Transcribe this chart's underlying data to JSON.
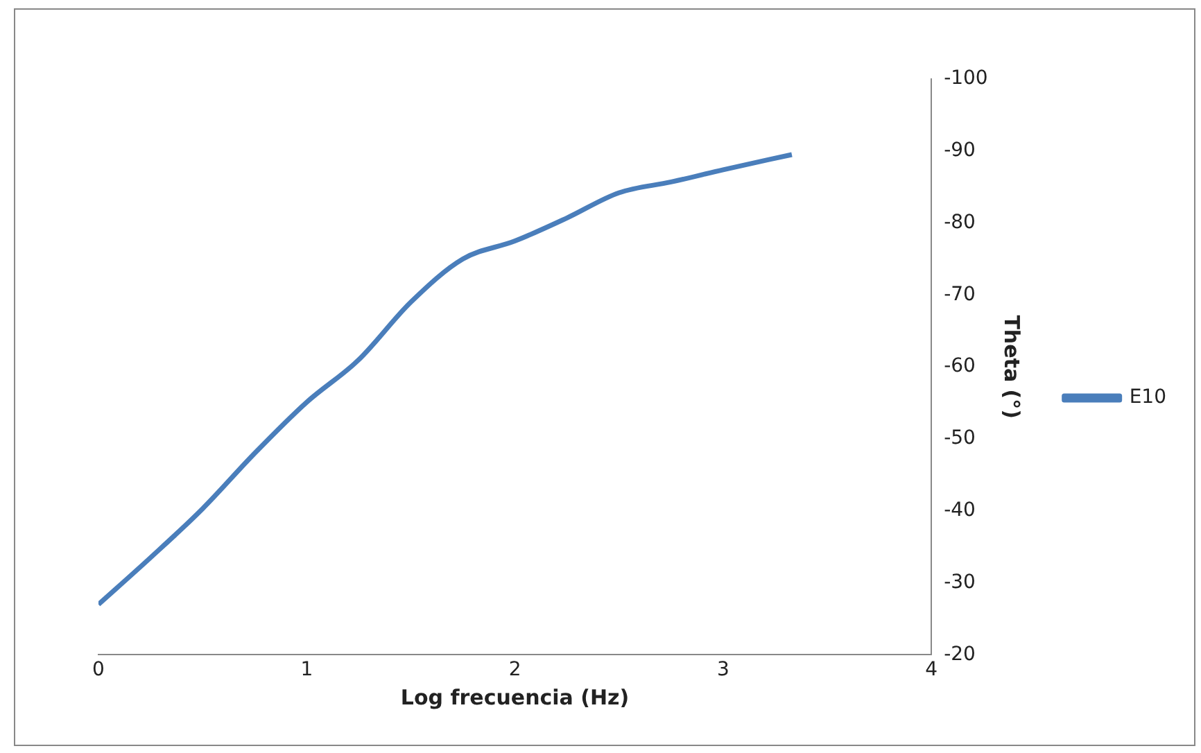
{
  "chart_data": {
    "type": "line",
    "xlabel": "Log frecuencia (Hz)",
    "ylabel": "Theta (°)",
    "x": [
      0,
      0.25,
      0.5,
      0.75,
      1,
      1.25,
      1.5,
      1.75,
      2,
      2.25,
      2.5,
      2.75,
      3,
      3.33
    ],
    "series": [
      {
        "name": "E10",
        "color": "#4a7ebb",
        "values": [
          -27,
          -33.5,
          -40.3,
          -48,
          -55.1,
          -61,
          -69,
          -75,
          -77.5,
          -80.7,
          -84.2,
          -85.7,
          -87.4,
          -89.5
        ]
      }
    ],
    "xlim": [
      0,
      4
    ],
    "xticks": [
      0,
      1,
      2,
      3,
      4
    ],
    "ylim": [
      -20,
      -100
    ],
    "yticks": [
      -20,
      -30,
      -40,
      -50,
      -60,
      -70,
      -80,
      -90,
      -100
    ],
    "grid": false,
    "legend": "right",
    "marker": "none",
    "line_style": "solid"
  }
}
